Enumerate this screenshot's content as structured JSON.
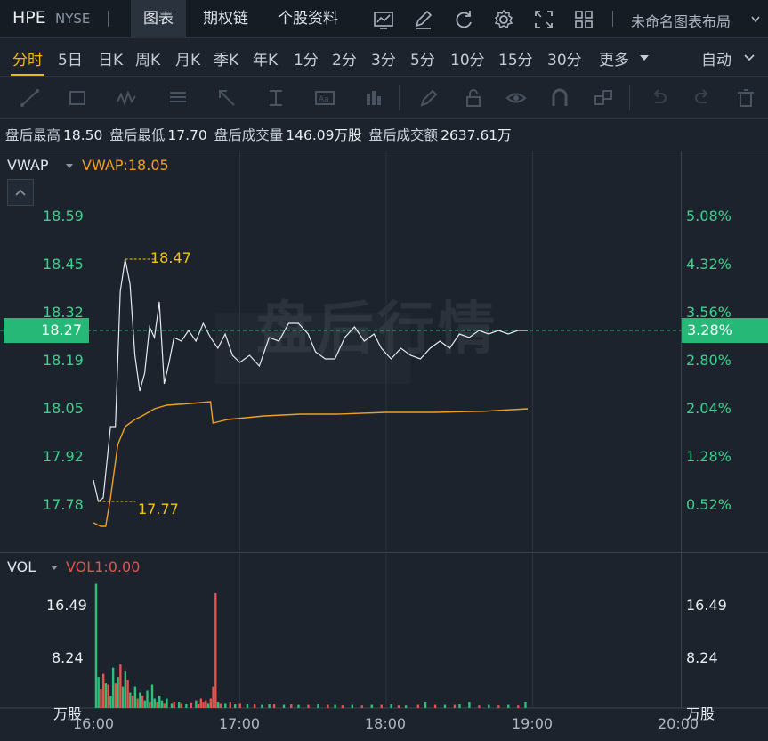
{
  "header": {
    "ticker": "HPE",
    "exchange": "NYSE",
    "tabs": [
      {
        "label": "图表",
        "active": true
      },
      {
        "label": "期权链",
        "active": false
      },
      {
        "label": "个股资料",
        "active": false
      }
    ],
    "icons": [
      "indicator-icon",
      "draw-icon",
      "refresh-icon",
      "settings-icon",
      "fullscreen-icon",
      "layout-grid-icon"
    ],
    "layout_name": "未命名图表布局"
  },
  "periods": {
    "items": [
      "分时",
      "5日",
      "日K",
      "周K",
      "月K",
      "季K",
      "年K",
      "1分",
      "2分",
      "3分",
      "5分",
      "10分",
      "15分",
      "30分",
      "更多"
    ],
    "active": "分时",
    "mode": "自动"
  },
  "toolbar": {
    "tools": [
      "line-tool-icon",
      "rectangle-tool-icon",
      "wave-tool-icon",
      "fib-tool-icon",
      "arrow-tool-icon",
      "measure-tool-icon",
      "text-tool-icon",
      "bar-pattern-icon",
      "brush-icon",
      "lock-icon",
      "eye-icon",
      "magnet-icon",
      "group-icon",
      "undo-icon",
      "redo-icon",
      "trash-icon"
    ]
  },
  "info": {
    "high_label": "盘后最高",
    "high": "18.50",
    "low_label": "盘后最低",
    "low": "17.70",
    "vol_label": "盘后成交量",
    "vol": "146.09万股",
    "amt_label": "盘后成交额",
    "amt": "2637.61万"
  },
  "price_panel": {
    "indicator": "VWAP",
    "indicator_value": "VWAP:18.05",
    "watermark": "盘后行情",
    "left_axis": [
      "18.59",
      "18.45",
      "18.32",
      "18.19",
      "18.05",
      "17.92",
      "17.78"
    ],
    "right_axis": [
      "5.08%",
      "4.32%",
      "3.56%",
      "2.80%",
      "2.04%",
      "1.28%",
      "0.52%"
    ],
    "current_price": "18.27",
    "current_pct": "3.28%",
    "max_label": "18.47",
    "min_label": "17.77",
    "colors": {
      "price_line": "#e6e9ee",
      "vwap_line": "#f0a020",
      "up": "#3fcf8e",
      "badge": "#25b877"
    }
  },
  "chart_data": {
    "type": "line",
    "x_range": [
      "16:00",
      "20:00"
    ],
    "ylim": [
      17.7,
      18.66
    ],
    "series": [
      {
        "values": [
          [
            0,
            17.85
          ],
          [
            2,
            17.79
          ],
          [
            4,
            17.8
          ],
          [
            7,
            18.0
          ],
          [
            9,
            18.0
          ],
          [
            11,
            18.38
          ],
          [
            13,
            18.47
          ],
          [
            15,
            18.4
          ],
          [
            17,
            18.2
          ],
          [
            19,
            18.1
          ],
          [
            21,
            18.15
          ],
          [
            23,
            18.28
          ],
          [
            25,
            18.25
          ],
          [
            27,
            18.35
          ],
          [
            29,
            18.12
          ],
          [
            31,
            18.18
          ],
          [
            33,
            18.25
          ],
          [
            36,
            18.24
          ],
          [
            39,
            18.27
          ],
          [
            42,
            18.24
          ],
          [
            45,
            18.29
          ],
          [
            48,
            18.25
          ],
          [
            51,
            18.22
          ],
          [
            54,
            18.26
          ],
          [
            57,
            18.2
          ],
          [
            60,
            18.18
          ],
          [
            64,
            18.2
          ],
          [
            68,
            18.17
          ],
          [
            72,
            18.25
          ],
          [
            76,
            18.24
          ],
          [
            80,
            18.29
          ],
          [
            84,
            18.29
          ],
          [
            88,
            18.26
          ],
          [
            91,
            18.21
          ],
          [
            95,
            18.19
          ],
          [
            99,
            18.19
          ],
          [
            103,
            18.25
          ],
          [
            107,
            18.28
          ],
          [
            111,
            18.24
          ],
          [
            115,
            18.26
          ],
          [
            118,
            18.22
          ],
          [
            122,
            18.19
          ],
          [
            126,
            18.22
          ],
          [
            130,
            18.2
          ],
          [
            134,
            18.19
          ],
          [
            138,
            18.22
          ],
          [
            142,
            18.24
          ],
          [
            146,
            18.22
          ],
          [
            150,
            18.26
          ],
          [
            154,
            18.25
          ],
          [
            158,
            18.27
          ],
          [
            162,
            18.26
          ],
          [
            166,
            18.27
          ],
          [
            170,
            18.26
          ],
          [
            174,
            18.27
          ],
          [
            178,
            18.27
          ]
        ]
      },
      {
        "name": "VWAP",
        "values": [
          [
            0,
            17.73
          ],
          [
            3,
            17.72
          ],
          [
            5,
            17.72
          ],
          [
            7,
            17.8
          ],
          [
            10,
            17.95
          ],
          [
            13,
            18.0
          ],
          [
            17,
            18.02
          ],
          [
            20,
            18.03
          ],
          [
            25,
            18.05
          ],
          [
            30,
            18.06
          ],
          [
            40,
            18.065
          ],
          [
            48,
            18.07
          ],
          [
            49,
            18.01
          ],
          [
            55,
            18.02
          ],
          [
            70,
            18.03
          ],
          [
            85,
            18.035
          ],
          [
            100,
            18.035
          ],
          [
            120,
            18.04
          ],
          [
            140,
            18.04
          ],
          [
            160,
            18.043
          ],
          [
            178,
            18.05
          ]
        ]
      }
    ]
  },
  "volume_panel": {
    "indicator": "VOL",
    "indicator_value": "VOL1:0.00",
    "left_axis": [
      "16.49",
      "8.24"
    ],
    "right_axis": [
      "16.49",
      "8.24"
    ],
    "unit": "万股",
    "up_color": "#2ebf7a",
    "down_color": "#e5534b"
  },
  "volume_data": [
    {
      "m": 1,
      "v": 20,
      "c": "up"
    },
    {
      "m": 2,
      "v": 5,
      "c": "up"
    },
    {
      "m": 3,
      "v": 3,
      "c": "down"
    },
    {
      "m": 4,
      "v": 5.5,
      "c": "down"
    },
    {
      "m": 5,
      "v": 4,
      "c": "up"
    },
    {
      "m": 6,
      "v": 3.8,
      "c": "down"
    },
    {
      "m": 7,
      "v": 2,
      "c": "up"
    },
    {
      "m": 8,
      "v": 6.5,
      "c": "up"
    },
    {
      "m": 9,
      "v": 4,
      "c": "down"
    },
    {
      "m": 10,
      "v": 5,
      "c": "up"
    },
    {
      "m": 11,
      "v": 7,
      "c": "down"
    },
    {
      "m": 12,
      "v": 3.5,
      "c": "up"
    },
    {
      "m": 13,
      "v": 6,
      "c": "up"
    },
    {
      "m": 14,
      "v": 4.5,
      "c": "down"
    },
    {
      "m": 15,
      "v": 2.5,
      "c": "up"
    },
    {
      "m": 16,
      "v": 2,
      "c": "down"
    },
    {
      "m": 17,
      "v": 3.5,
      "c": "up"
    },
    {
      "m": 18,
      "v": 1.5,
      "c": "down"
    },
    {
      "m": 19,
      "v": 2.5,
      "c": "up"
    },
    {
      "m": 20,
      "v": 2,
      "c": "down"
    },
    {
      "m": 21,
      "v": 1.2,
      "c": "up"
    },
    {
      "m": 22,
      "v": 2.8,
      "c": "up"
    },
    {
      "m": 23,
      "v": 1,
      "c": "down"
    },
    {
      "m": 24,
      "v": 3.8,
      "c": "up"
    },
    {
      "m": 25,
      "v": 1.5,
      "c": "up"
    },
    {
      "m": 26,
      "v": 1,
      "c": "down"
    },
    {
      "m": 27,
      "v": 2,
      "c": "up"
    },
    {
      "m": 28,
      "v": 1.2,
      "c": "up"
    },
    {
      "m": 29,
      "v": 0.8,
      "c": "down"
    },
    {
      "m": 30,
      "v": 1.5,
      "c": "up"
    },
    {
      "m": 32,
      "v": 0.8,
      "c": "up"
    },
    {
      "m": 33,
      "v": 1,
      "c": "down"
    },
    {
      "m": 35,
      "v": 1,
      "c": "up"
    },
    {
      "m": 36,
      "v": 0.8,
      "c": "down"
    },
    {
      "m": 38,
      "v": 0.7,
      "c": "up"
    },
    {
      "m": 40,
      "v": 0.9,
      "c": "down"
    },
    {
      "m": 42,
      "v": 1.2,
      "c": "up"
    },
    {
      "m": 43,
      "v": 0.7,
      "c": "down"
    },
    {
      "m": 44,
      "v": 1.5,
      "c": "down"
    },
    {
      "m": 45,
      "v": 1,
      "c": "down"
    },
    {
      "m": 46,
      "v": 1.2,
      "c": "down"
    },
    {
      "m": 47,
      "v": 0.8,
      "c": "up"
    },
    {
      "m": 48,
      "v": 1.5,
      "c": "down"
    },
    {
      "m": 49,
      "v": 3.5,
      "c": "down"
    },
    {
      "m": 50,
      "v": 18.5,
      "c": "down"
    },
    {
      "m": 51,
      "v": 1,
      "c": "up"
    },
    {
      "m": 52,
      "v": 0.8,
      "c": "down"
    },
    {
      "m": 54,
      "v": 0.8,
      "c": "up"
    },
    {
      "m": 56,
      "v": 1,
      "c": "down"
    },
    {
      "m": 58,
      "v": 0.6,
      "c": "up"
    },
    {
      "m": 60,
      "v": 0.8,
      "c": "down"
    },
    {
      "m": 63,
      "v": 0.6,
      "c": "up"
    },
    {
      "m": 66,
      "v": 0.7,
      "c": "down"
    },
    {
      "m": 69,
      "v": 0.5,
      "c": "up"
    },
    {
      "m": 72,
      "v": 0.6,
      "c": "up"
    },
    {
      "m": 74,
      "v": 0.7,
      "c": "down"
    },
    {
      "m": 78,
      "v": 0.5,
      "c": "up"
    },
    {
      "m": 81,
      "v": 0.6,
      "c": "down"
    },
    {
      "m": 84,
      "v": 0.5,
      "c": "up"
    },
    {
      "m": 88,
      "v": 0.5,
      "c": "down"
    },
    {
      "m": 92,
      "v": 0.6,
      "c": "up"
    },
    {
      "m": 96,
      "v": 0.5,
      "c": "down"
    },
    {
      "m": 99,
      "v": 0.5,
      "c": "up"
    },
    {
      "m": 102,
      "v": 0.4,
      "c": "down"
    },
    {
      "m": 106,
      "v": 0.5,
      "c": "up"
    },
    {
      "m": 110,
      "v": 0.4,
      "c": "down"
    },
    {
      "m": 114,
      "v": 0.5,
      "c": "up"
    },
    {
      "m": 118,
      "v": 0.5,
      "c": "down"
    },
    {
      "m": 122,
      "v": 0.6,
      "c": "up"
    },
    {
      "m": 125,
      "v": 0.4,
      "c": "down"
    },
    {
      "m": 128,
      "v": 0.4,
      "c": "up"
    },
    {
      "m": 133,
      "v": 0.5,
      "c": "down"
    },
    {
      "m": 136,
      "v": 1,
      "c": "up"
    },
    {
      "m": 140,
      "v": 0.5,
      "c": "down"
    },
    {
      "m": 144,
      "v": 0.5,
      "c": "up"
    },
    {
      "m": 148,
      "v": 0.5,
      "c": "down"
    },
    {
      "m": 150,
      "v": 0.6,
      "c": "up"
    },
    {
      "m": 154,
      "v": 1,
      "c": "up"
    },
    {
      "m": 158,
      "v": 0.4,
      "c": "down"
    },
    {
      "m": 162,
      "v": 0.5,
      "c": "up"
    },
    {
      "m": 166,
      "v": 0.4,
      "c": "down"
    },
    {
      "m": 170,
      "v": 0.5,
      "c": "up"
    },
    {
      "m": 174,
      "v": 0.4,
      "c": "down"
    },
    {
      "m": 177,
      "v": 1,
      "c": "up"
    }
  ],
  "time_axis": [
    "16:00",
    "17:00",
    "18:00",
    "19:00",
    "20:00"
  ]
}
